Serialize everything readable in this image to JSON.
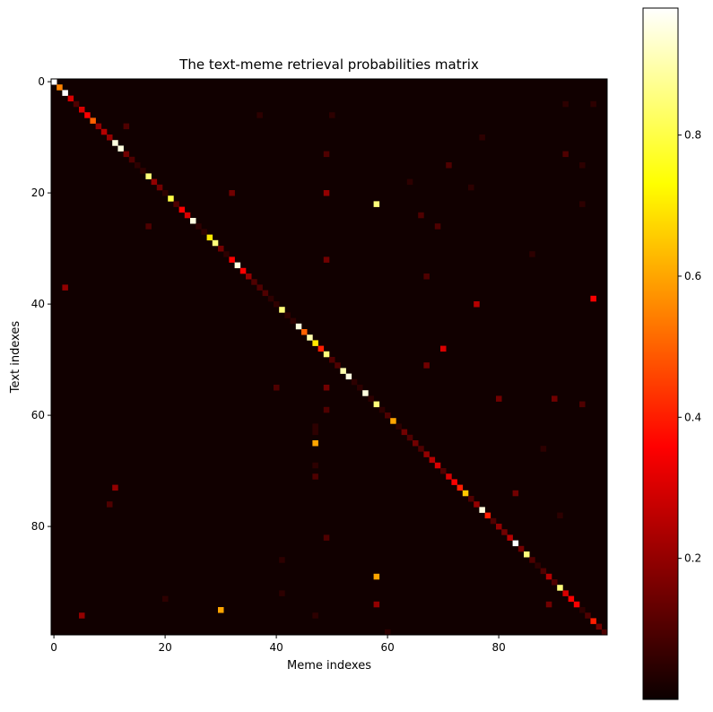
{
  "chart_data": {
    "type": "heatmap",
    "title": "The text-meme retrieval probabilities matrix",
    "xlabel": "Meme indexes",
    "ylabel": "Text indexes",
    "rows": 100,
    "cols": 100,
    "colormap": "hot",
    "background_value": 0.01,
    "x_ticks": [
      0,
      20,
      40,
      60,
      80
    ],
    "y_ticks": [
      0,
      20,
      40,
      60,
      80
    ],
    "colorbar": {
      "ticks": [
        0.2,
        0.4,
        0.6,
        0.8
      ],
      "vmin": 0.0,
      "vmax": 0.98
    },
    "diagonal_values": [
      0.98,
      0.55,
      0.98,
      0.3,
      0.1,
      0.3,
      0.35,
      0.5,
      0.2,
      0.25,
      0.2,
      0.95,
      0.95,
      0.15,
      0.1,
      0.05,
      0.05,
      0.85,
      0.2,
      0.15,
      0.05,
      0.8,
      0.1,
      0.35,
      0.3,
      0.95,
      0.05,
      0.05,
      0.7,
      0.85,
      0.15,
      0.05,
      0.35,
      0.95,
      0.35,
      0.2,
      0.1,
      0.1,
      0.1,
      0.05,
      0.05,
      0.85,
      0.05,
      0.05,
      0.95,
      0.5,
      0.9,
      0.7,
      0.4,
      0.85,
      0.1,
      0.1,
      0.9,
      0.95,
      0.05,
      0.05,
      0.95,
      0.05,
      0.85,
      0.05,
      0.1,
      0.6,
      0.05,
      0.15,
      0.1,
      0.15,
      0.1,
      0.2,
      0.25,
      0.3,
      0.1,
      0.3,
      0.35,
      0.4,
      0.65,
      0.1,
      0.2,
      0.95,
      0.4,
      0.1,
      0.2,
      0.15,
      0.25,
      0.98,
      0.15,
      0.85,
      0.1,
      0.05,
      0.1,
      0.25,
      0.1,
      0.85,
      0.3,
      0.35,
      0.35,
      0.05,
      0.1,
      0.4,
      0.15,
      0.1
    ],
    "off_diagonal": [
      [
        22,
        58,
        0.85
      ],
      [
        65,
        47,
        0.6
      ],
      [
        95,
        30,
        0.6
      ],
      [
        89,
        58,
        0.6
      ],
      [
        39,
        97,
        0.35
      ],
      [
        40,
        76,
        0.25
      ],
      [
        48,
        70,
        0.3
      ],
      [
        20,
        49,
        0.2
      ],
      [
        20,
        32,
        0.15
      ],
      [
        32,
        49,
        0.15
      ],
      [
        37,
        2,
        0.2
      ],
      [
        73,
        11,
        0.2
      ],
      [
        96,
        5,
        0.2
      ],
      [
        94,
        58,
        0.2
      ],
      [
        94,
        89,
        0.15
      ],
      [
        57,
        80,
        0.15
      ],
      [
        57,
        90,
        0.15
      ],
      [
        51,
        67,
        0.15
      ],
      [
        55,
        49,
        0.15
      ],
      [
        59,
        49,
        0.1
      ],
      [
        74,
        83,
        0.15
      ],
      [
        35,
        67,
        0.1
      ],
      [
        13,
        49,
        0.1
      ],
      [
        15,
        71,
        0.1
      ],
      [
        26,
        17,
        0.1
      ],
      [
        26,
        69,
        0.1
      ],
      [
        24,
        66,
        0.1
      ],
      [
        8,
        13,
        0.1
      ],
      [
        10,
        77,
        0.05
      ],
      [
        13,
        92,
        0.1
      ],
      [
        6,
        37,
        0.05
      ],
      [
        6,
        50,
        0.05
      ],
      [
        19,
        75,
        0.05
      ],
      [
        18,
        64,
        0.05
      ],
      [
        22,
        95,
        0.05
      ],
      [
        31,
        86,
        0.05
      ],
      [
        55,
        40,
        0.1
      ],
      [
        58,
        95,
        0.1
      ],
      [
        62,
        47,
        0.05
      ],
      [
        63,
        47,
        0.05
      ],
      [
        69,
        47,
        0.05
      ],
      [
        71,
        47,
        0.1
      ],
      [
        76,
        10,
        0.1
      ],
      [
        82,
        49,
        0.1
      ],
      [
        86,
        41,
        0.05
      ],
      [
        93,
        20,
        0.05
      ],
      [
        96,
        47,
        0.05
      ],
      [
        99,
        60,
        0.05
      ],
      [
        4,
        92,
        0.05
      ],
      [
        4,
        97,
        0.05
      ],
      [
        15,
        95,
        0.05
      ],
      [
        66,
        88,
        0.05
      ],
      [
        78,
        91,
        0.05
      ],
      [
        92,
        41,
        0.05
      ]
    ]
  }
}
